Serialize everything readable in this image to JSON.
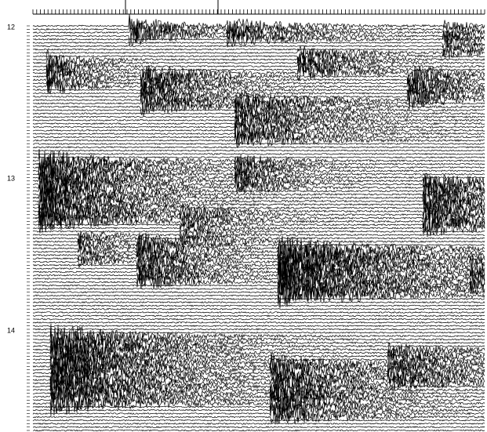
{
  "hour_labels": [
    "12",
    "13",
    "14"
  ]
}
